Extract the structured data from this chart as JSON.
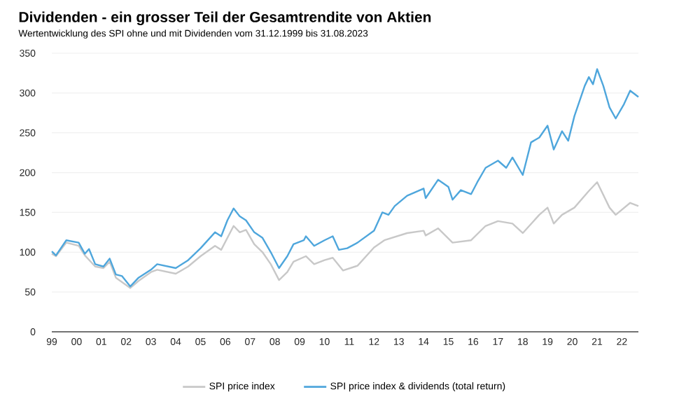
{
  "chart_data": {
    "type": "line",
    "title": "Dividenden - ein grosser Teil der Gesamtrendite von Aktien",
    "subtitle": "Wertentwicklung des SPI ohne und mit Dividenden vom 31.12.1999 bis 31.08.2023",
    "xlim": [
      "1999-12-31",
      "2023-08-31"
    ],
    "ylim": [
      0,
      350
    ],
    "yticks": [
      0,
      50,
      100,
      150,
      200,
      250,
      300,
      350
    ],
    "xticks": [
      {
        "value": "1999-12-31",
        "label": "99"
      },
      {
        "value": "2000-12-31",
        "label": "00"
      },
      {
        "value": "2001-12-31",
        "label": "01"
      },
      {
        "value": "2002-12-31",
        "label": "02"
      },
      {
        "value": "2003-12-31",
        "label": "03"
      },
      {
        "value": "2004-12-31",
        "label": "04"
      },
      {
        "value": "2005-12-31",
        "label": "05"
      },
      {
        "value": "2006-12-31",
        "label": "06"
      },
      {
        "value": "2007-12-31",
        "label": "07"
      },
      {
        "value": "2008-12-31",
        "label": "08"
      },
      {
        "value": "2009-12-31",
        "label": "09"
      },
      {
        "value": "2010-12-31",
        "label": "10"
      },
      {
        "value": "2011-12-31",
        "label": "11"
      },
      {
        "value": "2012-12-31",
        "label": "12"
      },
      {
        "value": "2013-12-31",
        "label": "13"
      },
      {
        "value": "2014-12-31",
        "label": "14"
      },
      {
        "value": "2015-12-31",
        "label": "15"
      },
      {
        "value": "2016-12-31",
        "label": "16"
      },
      {
        "value": "2017-12-31",
        "label": "17"
      },
      {
        "value": "2018-12-31",
        "label": "18"
      },
      {
        "value": "2019-12-31",
        "label": "19"
      },
      {
        "value": "2020-12-31",
        "label": "20"
      },
      {
        "value": "2021-12-31",
        "label": "21"
      },
      {
        "value": "2022-12-31",
        "label": "22"
      }
    ],
    "grid": "y",
    "legend": "bottom",
    "series": [
      {
        "name": "SPI price index",
        "color": "#c8c8c8",
        "x": [
          "1999-12-31",
          "2000-03",
          "2000-08",
          "2001-02",
          "2001-05",
          "2001-10",
          "2002-02",
          "2002-05",
          "2002-08",
          "2003-03",
          "2003-07",
          "2004-01",
          "2004-04",
          "2005-01",
          "2005-07",
          "2006-01",
          "2006-08",
          "2006-11",
          "2007-05",
          "2007-08",
          "2007-11",
          "2008-03",
          "2008-07",
          "2008-11",
          "2009-03",
          "2009-07",
          "2009-10",
          "2010-04",
          "2010-08",
          "2011-01",
          "2011-05",
          "2011-10",
          "2012-05",
          "2013-01",
          "2013-06",
          "2014-05",
          "2015-01",
          "2015-02",
          "2015-08",
          "2016-03",
          "2016-12",
          "2017-07",
          "2018-01",
          "2018-08",
          "2019-01",
          "2019-09",
          "2020-01",
          "2020-04",
          "2020-08",
          "2021-02",
          "2021-09",
          "2022-01",
          "2022-07",
          "2022-10",
          "2023-05",
          "2023-08-31"
        ],
        "values": [
          98,
          95,
          112,
          108,
          96,
          82,
          80,
          88,
          68,
          55,
          64,
          75,
          78,
          73,
          82,
          95,
          108,
          103,
          133,
          125,
          128,
          110,
          100,
          85,
          65,
          75,
          88,
          95,
          85,
          90,
          93,
          77,
          83,
          106,
          115,
          124,
          127,
          121,
          130,
          112,
          115,
          133,
          139,
          136,
          124,
          147,
          156,
          136,
          147,
          156,
          177,
          188,
          156,
          147,
          162,
          158
        ]
      },
      {
        "name": "SPI price index & dividends (total return)",
        "color": "#4ea6dc",
        "x": [
          "1999-12-31",
          "2000-03",
          "2000-08",
          "2001-02",
          "2001-05",
          "2001-07",
          "2001-10",
          "2002-02",
          "2002-05",
          "2002-08",
          "2002-11",
          "2003-03",
          "2003-07",
          "2004-01",
          "2004-04",
          "2005-01",
          "2005-07",
          "2006-01",
          "2006-08",
          "2006-11",
          "2007-02",
          "2007-05",
          "2007-08",
          "2007-11",
          "2008-03",
          "2008-07",
          "2008-11",
          "2009-03",
          "2009-07",
          "2009-10",
          "2010-03",
          "2010-04",
          "2010-08",
          "2011-01",
          "2011-05",
          "2011-08",
          "2011-12",
          "2012-05",
          "2013-01",
          "2013-05",
          "2013-08",
          "2013-11",
          "2014-05",
          "2015-01",
          "2015-02",
          "2015-08",
          "2016-01",
          "2016-03",
          "2016-07",
          "2016-12",
          "2017-03",
          "2017-07",
          "2018-01",
          "2018-05",
          "2018-08",
          "2019-01",
          "2019-05",
          "2019-09",
          "2020-01",
          "2020-04",
          "2020-08",
          "2020-11",
          "2021-02",
          "2021-07",
          "2021-09",
          "2021-11",
          "2022-01",
          "2022-04",
          "2022-07",
          "2022-10",
          "2023-02",
          "2023-05",
          "2023-08-31"
        ],
        "values": [
          101,
          96,
          115,
          112,
          98,
          104,
          85,
          82,
          92,
          72,
          70,
          57,
          68,
          78,
          85,
          80,
          90,
          105,
          125,
          120,
          140,
          155,
          145,
          140,
          125,
          118,
          100,
          80,
          95,
          110,
          115,
          120,
          108,
          115,
          120,
          103,
          105,
          112,
          127,
          150,
          147,
          158,
          171,
          180,
          168,
          191,
          182,
          166,
          178,
          173,
          188,
          206,
          215,
          206,
          219,
          197,
          238,
          244,
          259,
          229,
          252,
          240,
          271,
          309,
          320,
          311,
          330,
          309,
          282,
          268,
          286,
          303,
          295
        ]
      }
    ]
  }
}
